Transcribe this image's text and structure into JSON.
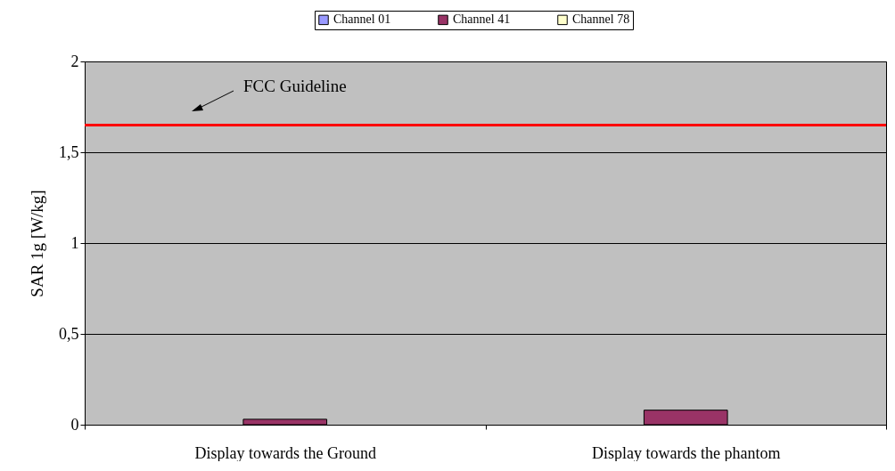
{
  "chart_data": {
    "type": "bar",
    "ylabel": "SAR 1g [W/kg]",
    "categories": [
      "Display towards the Ground",
      "Display towards the phantom"
    ],
    "series": [
      {
        "name": "Channel 01",
        "color": "#9999ff",
        "values": [
          null,
          null
        ]
      },
      {
        "name": "Channel 41",
        "color": "#993366",
        "values": [
          0.03,
          0.08
        ]
      },
      {
        "name": "Channel 78",
        "color": "#ffffcc",
        "values": [
          null,
          null
        ]
      }
    ],
    "ylim": [
      0,
      2
    ],
    "yticks": [
      {
        "value": 0,
        "label": "0"
      },
      {
        "value": 0.5,
        "label": "0,5"
      },
      {
        "value": 1,
        "label": "1"
      },
      {
        "value": 1.5,
        "label": "1,5"
      },
      {
        "value": 2,
        "label": "2"
      }
    ],
    "ref_lines": [
      {
        "axis": "y",
        "value": 1.65,
        "label": "FCC Guideline",
        "color": "#ff0000"
      }
    ],
    "grid": "y",
    "legend": "top"
  }
}
